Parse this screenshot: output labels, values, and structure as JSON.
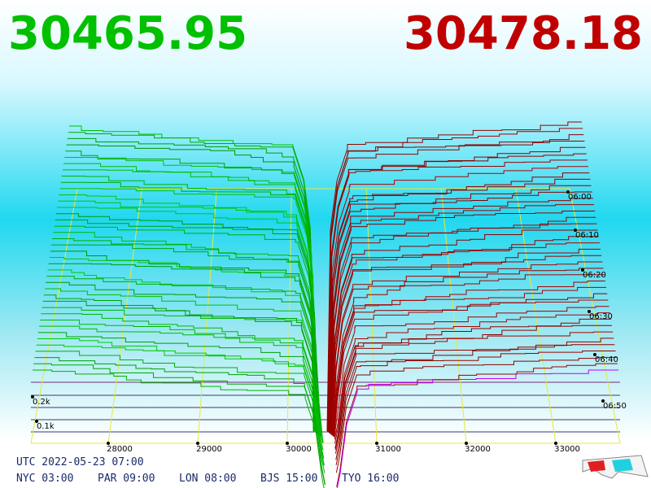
{
  "header": {
    "bid_price": "30465.95",
    "ask_price": "30478.18"
  },
  "axis": {
    "price_ticks": [
      28000,
      29000,
      30000,
      31000,
      32000,
      33000
    ],
    "depth_ticks": [
      "0.2k",
      "0.1k"
    ],
    "time_ticks": [
      "06:00",
      "06:10",
      "06:20",
      "06:30",
      "06:40",
      "06:50"
    ]
  },
  "footer": {
    "utc": "UTC 2022-05-23 07:00",
    "cities": [
      "NYC 03:00",
      "PAR 09:00",
      "LON 08:00",
      "BJS 15:00",
      "TYO 16:00"
    ]
  }
}
